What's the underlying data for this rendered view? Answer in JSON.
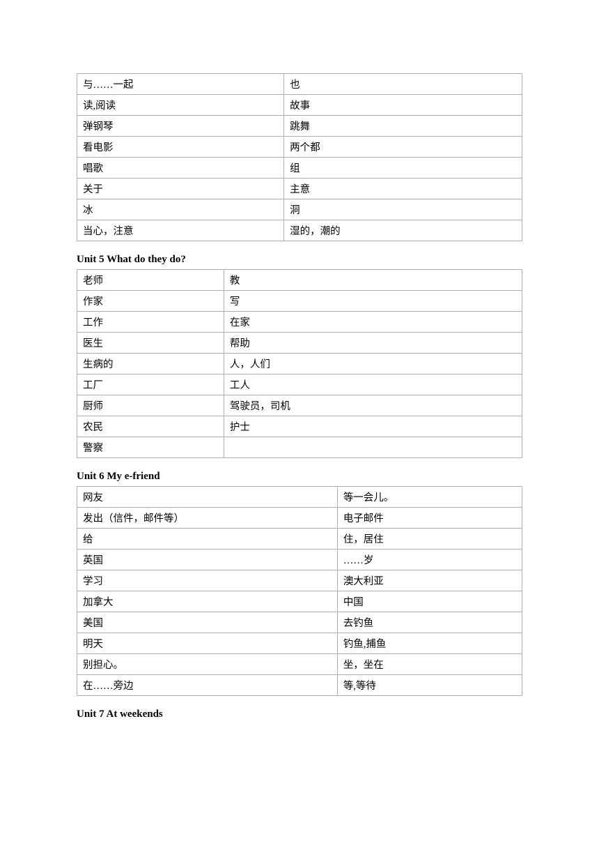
{
  "table1": {
    "rows": [
      [
        "与……一起",
        "也"
      ],
      [
        "读,阅读",
        "故事"
      ],
      [
        "弹钢琴",
        "跳舞"
      ],
      [
        "看电影",
        "两个都"
      ],
      [
        "唱歌",
        "组"
      ],
      [
        "关于",
        "主意"
      ],
      [
        "冰",
        "洞"
      ],
      [
        "当心，注意",
        "湿的，潮的"
      ]
    ]
  },
  "section2": {
    "title": "Unit 5 What do they do?",
    "rows": [
      [
        "老师",
        "教"
      ],
      [
        "作家",
        "写"
      ],
      [
        "工作",
        "在家"
      ],
      [
        "医生",
        "帮助"
      ],
      [
        "生病的",
        "人，人们"
      ],
      [
        "工厂",
        "工人"
      ],
      [
        "厨师",
        "驾驶员，司机"
      ],
      [
        "农民",
        "护士"
      ],
      [
        "警察",
        ""
      ]
    ]
  },
  "section3": {
    "title": "Unit 6 My e-friend",
    "rows": [
      [
        "网友",
        "等一会儿。"
      ],
      [
        "发出（信件，邮件等）",
        "电子邮件"
      ],
      [
        "给",
        "住，居住"
      ],
      [
        "英国",
        "……岁"
      ],
      [
        "学习",
        "澳大利亚"
      ],
      [
        "加拿大",
        "中国"
      ],
      [
        "美国",
        "去钓鱼"
      ],
      [
        "明天",
        "钓鱼,捕鱼"
      ],
      [
        "别担心。",
        "坐，坐在"
      ],
      [
        "在……旁边",
        "等,等待"
      ]
    ]
  },
  "section4": {
    "title": "Unit 7 At weekends"
  }
}
